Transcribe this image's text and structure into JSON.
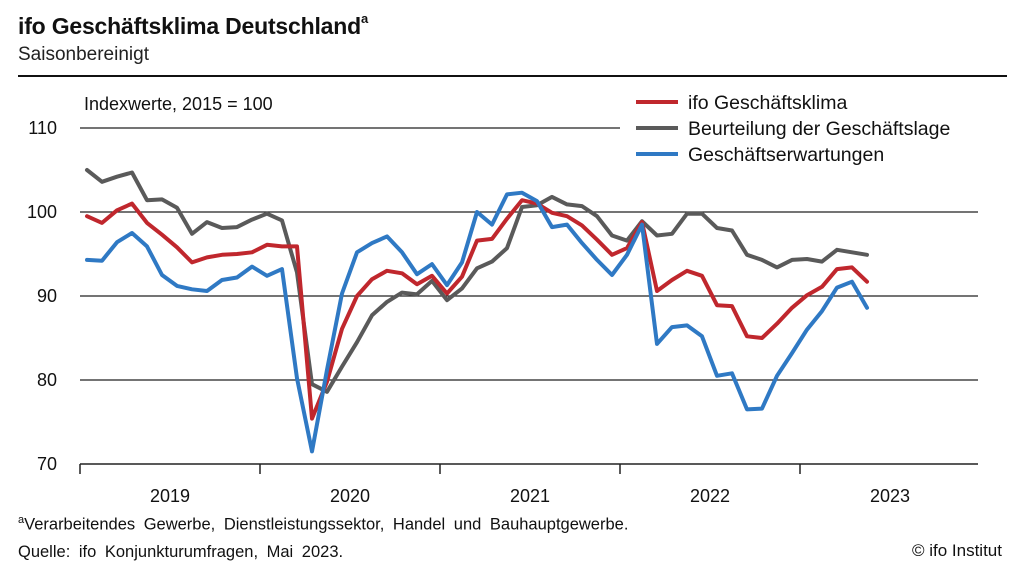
{
  "header": {
    "title": "ifo Geschäftsklima Deutschland",
    "title_marker": "a",
    "subtitle": "Saisonbereinigt"
  },
  "chart_data": {
    "type": "line",
    "unit_label": "Indexwerte, 2015 = 100",
    "x_start": "2019-01",
    "x_labels": [
      "2019",
      "2020",
      "2021",
      "2022",
      "2023"
    ],
    "ylim": [
      70,
      110
    ],
    "yticks": [
      70,
      80,
      90,
      100,
      110
    ],
    "grid": true,
    "legend_position": "top-right",
    "series": [
      {
        "name": "ifo Geschäftsklima",
        "color": "#c0272d",
        "values": [
          99.5,
          98.7,
          100.2,
          101.0,
          98.7,
          97.3,
          95.8,
          94.0,
          94.6,
          94.9,
          95.0,
          95.2,
          96.1,
          95.9,
          95.9,
          75.4,
          79.8,
          86.1,
          90.0,
          92.0,
          93.0,
          92.7,
          91.4,
          92.4,
          90.3,
          92.3,
          96.6,
          96.8,
          99.2,
          101.4,
          101.0,
          99.9,
          99.5,
          98.4,
          96.7,
          94.9,
          95.7,
          98.8,
          90.6,
          91.9,
          93.0,
          92.4,
          88.9,
          88.8,
          85.2,
          85.0,
          86.7,
          88.6,
          90.1,
          91.1,
          93.2,
          93.4,
          91.7
        ]
      },
      {
        "name": "Beurteilung der Geschäftslage",
        "color": "#5a5a5a",
        "values": [
          105.0,
          103.6,
          104.2,
          104.7,
          101.4,
          101.5,
          100.5,
          97.4,
          98.8,
          98.1,
          98.2,
          99.1,
          99.8,
          99.0,
          92.8,
          79.5,
          78.6,
          81.6,
          84.5,
          87.7,
          89.3,
          90.4,
          90.2,
          91.8,
          89.5,
          90.9,
          93.3,
          94.1,
          95.7,
          100.6,
          100.8,
          101.8,
          100.9,
          100.7,
          99.5,
          97.2,
          96.6,
          98.9,
          97.2,
          97.4,
          99.8,
          99.8,
          98.1,
          97.8,
          94.9,
          94.3,
          93.4,
          94.3,
          94.4,
          94.1,
          95.5,
          95.2,
          94.9
        ]
      },
      {
        "name": "Geschäftserwartungen",
        "color": "#2f79c4",
        "values": [
          94.3,
          94.2,
          96.4,
          97.5,
          95.9,
          92.5,
          91.2,
          90.8,
          90.6,
          91.9,
          92.2,
          93.5,
          92.4,
          93.2,
          80.2,
          71.5,
          81.2,
          90.3,
          95.2,
          96.3,
          97.1,
          95.2,
          92.6,
          93.8,
          91.3,
          94.0,
          100.0,
          98.5,
          102.1,
          102.3,
          101.3,
          98.2,
          98.5,
          96.3,
          94.3,
          92.5,
          94.9,
          98.5,
          84.3,
          86.3,
          86.5,
          85.2,
          80.5,
          80.8,
          76.5,
          76.6,
          80.5,
          83.2,
          86.0,
          88.2,
          91.0,
          91.7,
          88.6
        ]
      }
    ]
  },
  "footer": {
    "footnote_marker": "a",
    "footnote": "Verarbeitendes Gewerbe, Dienstleistungssektor, Handel und Bauhauptgewerbe.",
    "source": "Quelle: ifo Konjunkturumfragen, Mai 2023.",
    "copyright": "© ifo Institut"
  }
}
